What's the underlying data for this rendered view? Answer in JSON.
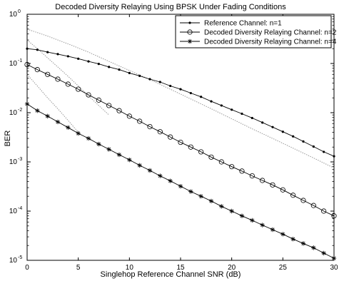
{
  "chart_data": {
    "type": "line",
    "title": "Decoded Diversity Relaying Using BPSK Under Fading Conditions",
    "xlabel": "Singlehop Reference Channel SNR (dB)",
    "ylabel": "BER",
    "xlim": [
      0,
      30
    ],
    "ylim": [
      1e-05,
      1
    ],
    "yscale": "log",
    "grid": false,
    "legend_position": "top-right",
    "x_ticks": [
      {
        "value": 0,
        "label": "0"
      },
      {
        "value": 5,
        "label": "5"
      },
      {
        "value": 10,
        "label": "10"
      },
      {
        "value": 15,
        "label": "15"
      },
      {
        "value": 20,
        "label": "20"
      },
      {
        "value": 25,
        "label": "25"
      },
      {
        "value": 30,
        "label": "30"
      }
    ],
    "y_ticks": [
      {
        "value": 1,
        "base": "10",
        "exp": "0"
      },
      {
        "value": 0.1,
        "base": "10",
        "exp": "-1"
      },
      {
        "value": 0.01,
        "base": "10",
        "exp": "-2"
      },
      {
        "value": 0.001,
        "base": "10",
        "exp": "-3"
      },
      {
        "value": 0.0001,
        "base": "10",
        "exp": "-4"
      },
      {
        "value": 1e-05,
        "base": "10",
        "exp": "-5"
      }
    ],
    "series": [
      {
        "name": "Reference Channel: n=1",
        "marker": "dot",
        "color": "#000000",
        "x": [
          0,
          1,
          2,
          3,
          4,
          5,
          6,
          7,
          8,
          9,
          10,
          11,
          12,
          13,
          14,
          15,
          16,
          17,
          18,
          19,
          20,
          21,
          22,
          23,
          24,
          25,
          26,
          27,
          28,
          29,
          30
        ],
        "values": [
          0.2,
          0.19,
          0.17,
          0.155,
          0.14,
          0.125,
          0.11,
          0.098,
          0.085,
          0.075,
          0.064,
          0.056,
          0.048,
          0.042,
          0.035,
          0.03,
          0.025,
          0.021,
          0.017,
          0.014,
          0.0115,
          0.0095,
          0.0078,
          0.0063,
          0.0051,
          0.0041,
          0.0033,
          0.0026,
          0.00205,
          0.0016,
          0.0013
        ]
      },
      {
        "name": "Decoded Diversity Relaying Channel: n=2",
        "marker": "circle",
        "color": "#000000",
        "x": [
          0,
          1,
          2,
          3,
          4,
          5,
          6,
          7,
          8,
          9,
          10,
          11,
          12,
          13,
          14,
          15,
          16,
          17,
          18,
          19,
          20,
          21,
          22,
          23,
          24,
          25,
          26,
          27,
          28,
          29,
          30
        ],
        "values": [
          0.095,
          0.075,
          0.06,
          0.048,
          0.038,
          0.03,
          0.023,
          0.018,
          0.014,
          0.011,
          0.0085,
          0.0067,
          0.0052,
          0.0041,
          0.0032,
          0.0025,
          0.002,
          0.0016,
          0.00125,
          0.001,
          0.0008,
          0.00065,
          0.00052,
          0.00042,
          0.00034,
          0.00027,
          0.00021,
          0.000165,
          0.00013,
          0.0001,
          8e-05
        ]
      },
      {
        "name": "Decoded Diversity Relaying Channel: n=4",
        "marker": "star",
        "color": "#000000",
        "x": [
          0,
          1,
          2,
          3,
          4,
          5,
          6,
          7,
          8,
          9,
          10,
          11,
          12,
          13,
          14,
          15,
          16,
          17,
          18,
          19,
          20,
          21,
          22,
          23,
          24,
          25,
          26,
          27,
          28,
          29,
          30
        ],
        "values": [
          0.015,
          0.011,
          0.0085,
          0.0065,
          0.005,
          0.0038,
          0.003,
          0.0023,
          0.0018,
          0.0014,
          0.0011,
          0.00085,
          0.00067,
          0.00052,
          0.00041,
          0.00032,
          0.00025,
          0.0002,
          0.00016,
          0.000125,
          0.0001,
          8e-05,
          6.5e-05,
          5.2e-05,
          4.2e-05,
          3.4e-05,
          2.7e-05,
          2.2e-05,
          1.8e-05,
          1.4e-05,
          1.1e-05
        ]
      }
    ],
    "theory_curves": [
      {
        "style": "dotted",
        "color": "#999999",
        "x": [
          0,
          2,
          4,
          6,
          8,
          10,
          12,
          14,
          16,
          18,
          20,
          22,
          24,
          26,
          28,
          30
        ],
        "values": [
          0.5,
          0.36,
          0.25,
          0.17,
          0.11,
          0.072,
          0.047,
          0.03,
          0.019,
          0.012,
          0.0075,
          0.0047,
          0.003,
          0.0019,
          0.0012,
          0.00075
        ]
      },
      {
        "style": "dotted",
        "color": "#999999",
        "x": [
          0,
          1,
          2,
          3,
          4,
          5,
          6,
          7,
          8
        ],
        "values": [
          0.3,
          0.2,
          0.13,
          0.085,
          0.055,
          0.035,
          0.022,
          0.014,
          0.009
        ]
      },
      {
        "style": "dotted",
        "color": "#999999",
        "x": [
          0,
          1,
          2,
          3,
          4,
          5
        ],
        "values": [
          0.06,
          0.035,
          0.02,
          0.012,
          0.007,
          0.004
        ]
      }
    ]
  }
}
